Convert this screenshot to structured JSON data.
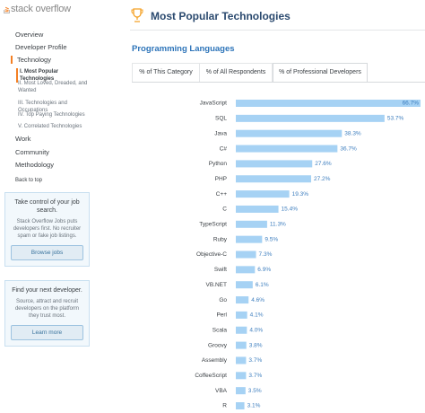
{
  "sidebar": {
    "logo": "stack overflow",
    "nav": [
      "Overview",
      "Developer Profile",
      "Technology"
    ],
    "subnav": [
      "I. Most Popular Technologies",
      "II. Most Loved, Dreaded, and Wanted",
      "III. Technologies and Occupations",
      "IV. Top Paying Technologies",
      "V. Correlated Technologies"
    ],
    "nav2": [
      "Work",
      "Community",
      "Methodology"
    ],
    "back_to_top": "Back to top",
    "jobs_box": {
      "title": "Take control of your job search.",
      "text": "Stack Overflow Jobs puts developers first. No recruiter spam or fake job listings.",
      "button": "Browse jobs"
    },
    "talent_box": {
      "title": "Find your next developer.",
      "text": "Source, attract and recruit developers on the platform they trust most.",
      "button": "Learn more"
    }
  },
  "header": {
    "title": "Most Popular Technologies",
    "section": "Programming Languages"
  },
  "tabs": [
    "% of This Category",
    "% of All Respondents",
    "% of Professional Developers"
  ],
  "chart_data": {
    "type": "bar",
    "orientation": "horizontal",
    "color": "#a6d2f4",
    "label_color": "#3f7fbf",
    "categories": [
      "JavaScript",
      "SQL",
      "Java",
      "C#",
      "Python",
      "PHP",
      "C++",
      "C",
      "TypeScript",
      "Ruby",
      "Objective-C",
      "Swift",
      "VB.NET",
      "Go",
      "Perl",
      "Scala",
      "Groovy",
      "Assembly",
      "CoffeeScript",
      "VBA",
      "R"
    ],
    "values": [
      66.7,
      53.7,
      38.3,
      36.7,
      27.6,
      27.2,
      19.3,
      15.4,
      11.3,
      9.5,
      7.3,
      6.9,
      6.1,
      4.6,
      4.1,
      4.0,
      3.8,
      3.7,
      3.7,
      3.5,
      3.1
    ],
    "value_labels": [
      "66.7%",
      "53.7%",
      "38.3%",
      "36.7%",
      "27.6%",
      "27.2%",
      "19.3%",
      "15.4%",
      "11.3%",
      "9.5%",
      "7.3%",
      "6.9%",
      "6.1%",
      "4.6%",
      "4.1%",
      "4.0%",
      "3.8%",
      "3.7%",
      "3.7%",
      "3.5%",
      "3.1%"
    ]
  }
}
